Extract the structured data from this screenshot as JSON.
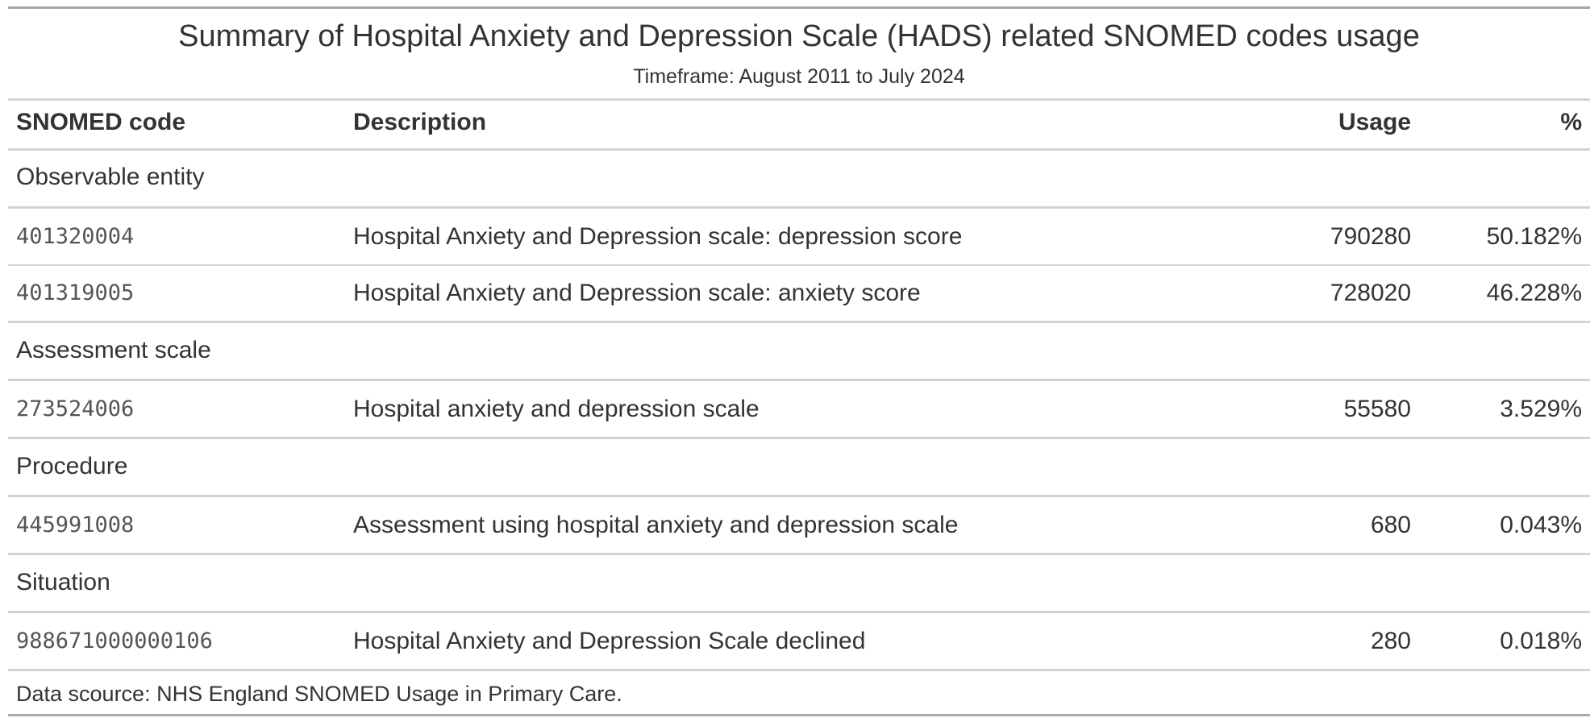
{
  "table": {
    "title": "Summary of Hospital Anxiety and Depression Scale (HADS) related SNOMED codes usage",
    "subtitle": "Timeframe: August 2011 to July 2024",
    "columns": {
      "code": "SNOMED code",
      "description": "Description",
      "usage": "Usage",
      "percent": "%"
    },
    "groups": [
      {
        "label": "Observable entity",
        "rows": [
          {
            "code": "401320004",
            "description": "Hospital Anxiety and Depression scale: depression score",
            "usage": "790280",
            "percent": "50.182%"
          },
          {
            "code": "401319005",
            "description": "Hospital Anxiety and Depression scale: anxiety score",
            "usage": "728020",
            "percent": "46.228%"
          }
        ]
      },
      {
        "label": "Assessment scale",
        "rows": [
          {
            "code": "273524006",
            "description": "Hospital anxiety and depression scale",
            "usage": "55580",
            "percent": "3.529%"
          }
        ]
      },
      {
        "label": "Procedure",
        "rows": [
          {
            "code": "445991008",
            "description": "Assessment using hospital anxiety and depression scale",
            "usage": "680",
            "percent": "0.043%"
          }
        ]
      },
      {
        "label": "Situation",
        "rows": [
          {
            "code": "988671000000106",
            "description": "Hospital Anxiety and Depression Scale declined",
            "usage": "280",
            "percent": "0.018%"
          }
        ]
      }
    ],
    "source_note": "Data scource: NHS England SNOMED Usage in Primary Care."
  }
}
